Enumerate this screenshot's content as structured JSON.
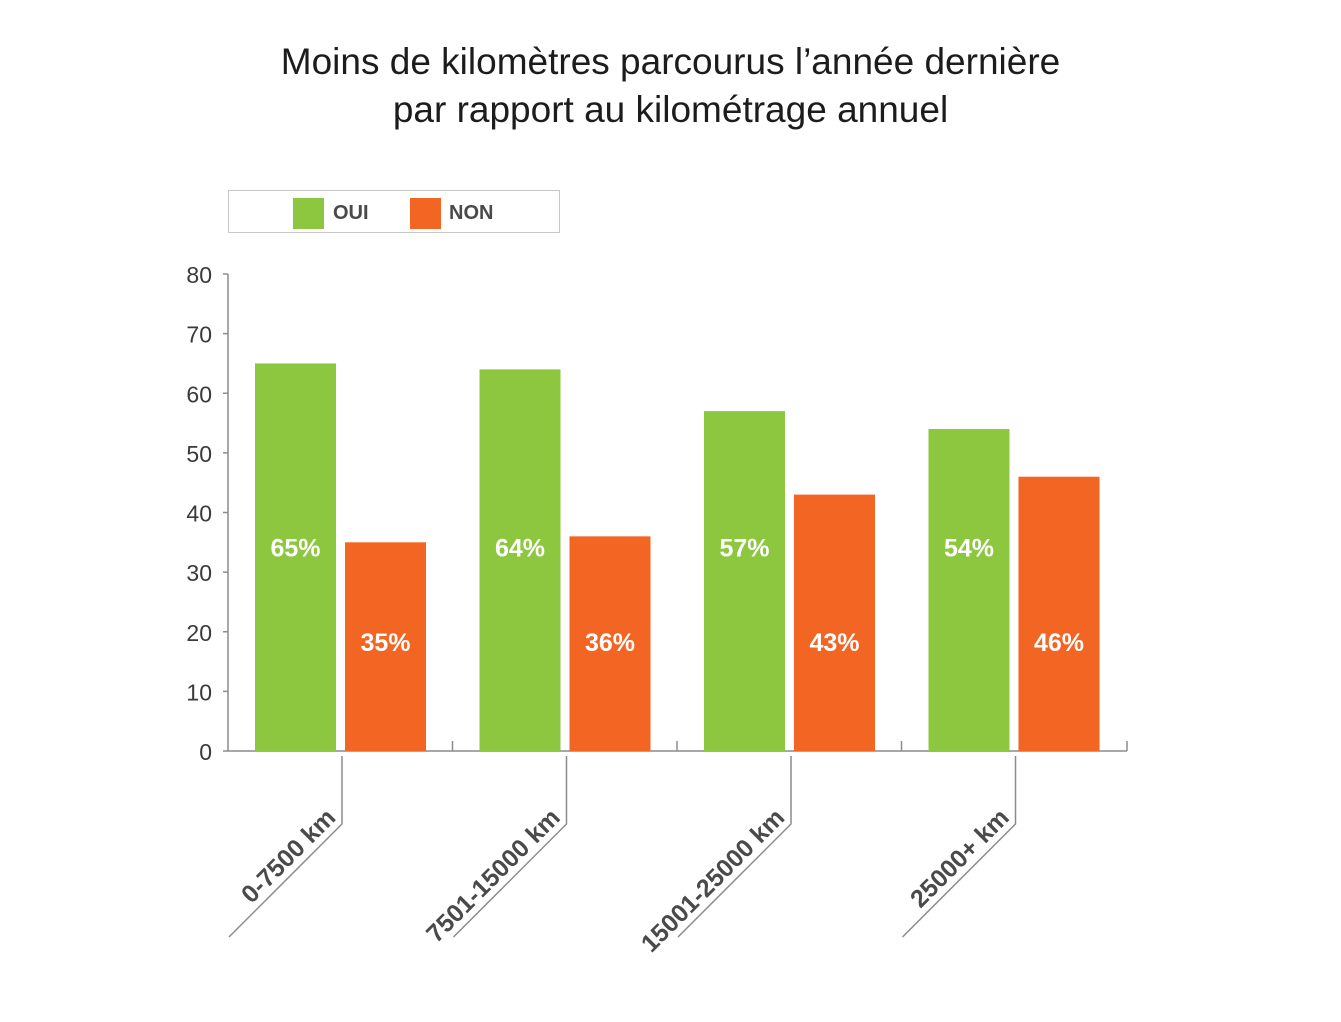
{
  "title": {
    "line1": "Moins de kilomètres parcourus l’année dernière",
    "line2": "par rapport au kilométrage annuel"
  },
  "legend": {
    "items": [
      {
        "label": "OUI",
        "color": "#8dc63f"
      },
      {
        "label": "NON",
        "color": "#f26522"
      }
    ]
  },
  "chart_data": {
    "type": "bar",
    "categories": [
      "0-7500 km",
      "7501-15000 km",
      "15001-25000 km",
      "25000+ km"
    ],
    "series": [
      {
        "name": "OUI",
        "color": "#8dc63f",
        "values": [
          65,
          64,
          57,
          54
        ],
        "labels": [
          "65%",
          "64%",
          "57%",
          "54%"
        ]
      },
      {
        "name": "NON",
        "color": "#f26522",
        "values": [
          35,
          36,
          43,
          46
        ],
        "labels": [
          "35%",
          "36%",
          "43%",
          "46%"
        ]
      }
    ],
    "yticks": [
      0,
      10,
      20,
      30,
      40,
      50,
      60,
      70,
      80
    ],
    "ylim": [
      0,
      80
    ],
    "grid": false,
    "legend_position": "top-left",
    "xlabel": "",
    "ylabel": ""
  }
}
